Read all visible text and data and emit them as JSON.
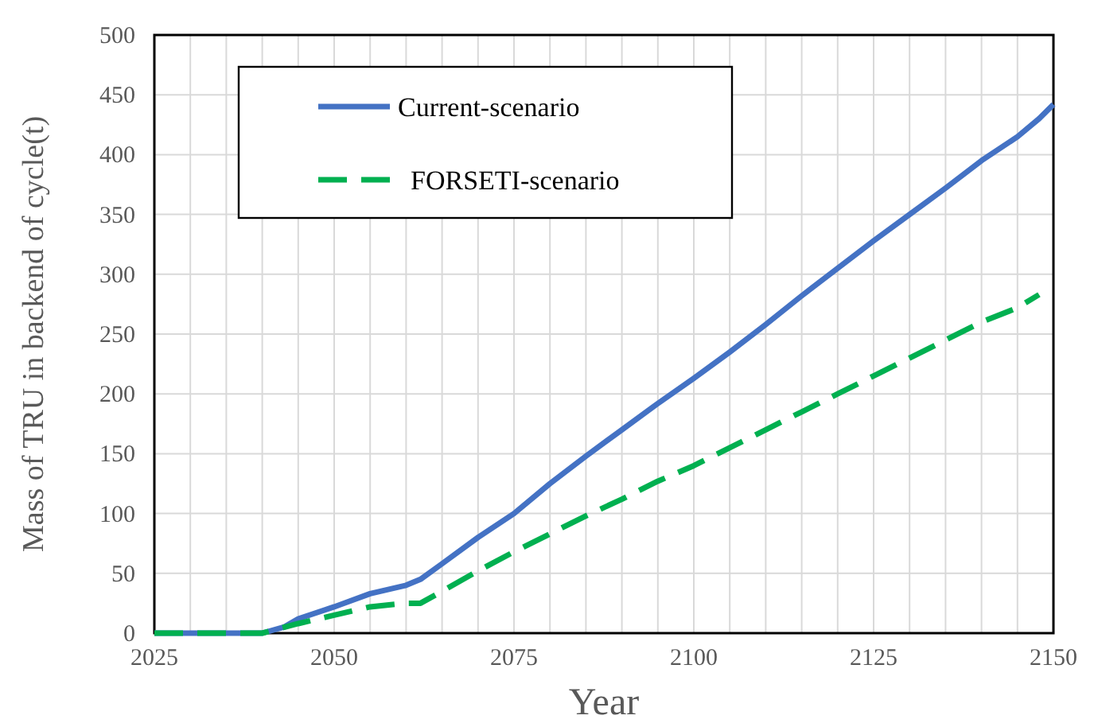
{
  "chart_data": {
    "type": "line",
    "xlabel": "Year",
    "ylabel": "Mass of TRU in backend of cycle(t)",
    "xlim": [
      2025,
      2150
    ],
    "xticks": [
      2025,
      {
        "value": 2030,
        "label": null
      },
      {
        "value": 2035,
        "label": null
      },
      {
        "value": 2040,
        "label": null
      },
      {
        "value": 2045,
        "label": null
      },
      2050,
      {
        "value": 2055,
        "label": null
      },
      {
        "value": 2060,
        "label": null
      },
      {
        "value": 2065,
        "label": null
      },
      {
        "value": 2070,
        "label": null
      },
      2075,
      {
        "value": 2080,
        "label": null
      },
      {
        "value": 2085,
        "label": null
      },
      {
        "value": 2090,
        "label": null
      },
      {
        "value": 2095,
        "label": null
      },
      2100,
      {
        "value": 2105,
        "label": null
      },
      {
        "value": 2110,
        "label": null
      },
      {
        "value": 2115,
        "label": null
      },
      {
        "value": 2120,
        "label": null
      },
      2125,
      {
        "value": 2130,
        "label": null
      },
      {
        "value": 2135,
        "label": null
      },
      {
        "value": 2140,
        "label": null
      },
      {
        "value": 2145,
        "label": null
      },
      2150
    ],
    "ylim": [
      0,
      500
    ],
    "yticks": [
      0,
      50,
      100,
      150,
      200,
      250,
      300,
      350,
      400,
      450,
      500
    ],
    "grid": true,
    "legend": "top left",
    "series": [
      {
        "name": "Current-scenario",
        "color": "#4472c4",
        "line_style": "solid",
        "x": [
          2025,
          2030,
          2035,
          2040,
          2043,
          2045,
          2050,
          2055,
          2060,
          2062,
          2065,
          2070,
          2075,
          2080,
          2085,
          2090,
          2095,
          2100,
          2105,
          2110,
          2115,
          2120,
          2125,
          2130,
          2135,
          2140,
          2145,
          2148,
          2150
        ],
        "values": [
          0,
          0,
          0,
          0,
          5,
          12,
          22,
          33,
          40,
          45,
          58,
          80,
          100,
          125,
          148,
          170,
          192,
          213,
          235,
          258,
          282,
          305,
          328,
          350,
          372,
          395,
          415,
          430,
          442
        ]
      },
      {
        "name": "FORSETI-scenario",
        "color": "#00b050",
        "line_style": "dashed",
        "x": [
          2025,
          2030,
          2035,
          2040,
          2045,
          2050,
          2055,
          2060,
          2062,
          2065,
          2070,
          2075,
          2080,
          2085,
          2090,
          2095,
          2100,
          2105,
          2110,
          2115,
          2120,
          2125,
          2130,
          2135,
          2140,
          2145,
          2148
        ],
        "values": [
          0,
          0,
          0,
          0,
          8,
          15,
          22,
          25,
          25,
          35,
          52,
          68,
          83,
          98,
          112,
          127,
          140,
          155,
          170,
          185,
          200,
          215,
          230,
          245,
          260,
          272,
          283
        ]
      }
    ]
  }
}
